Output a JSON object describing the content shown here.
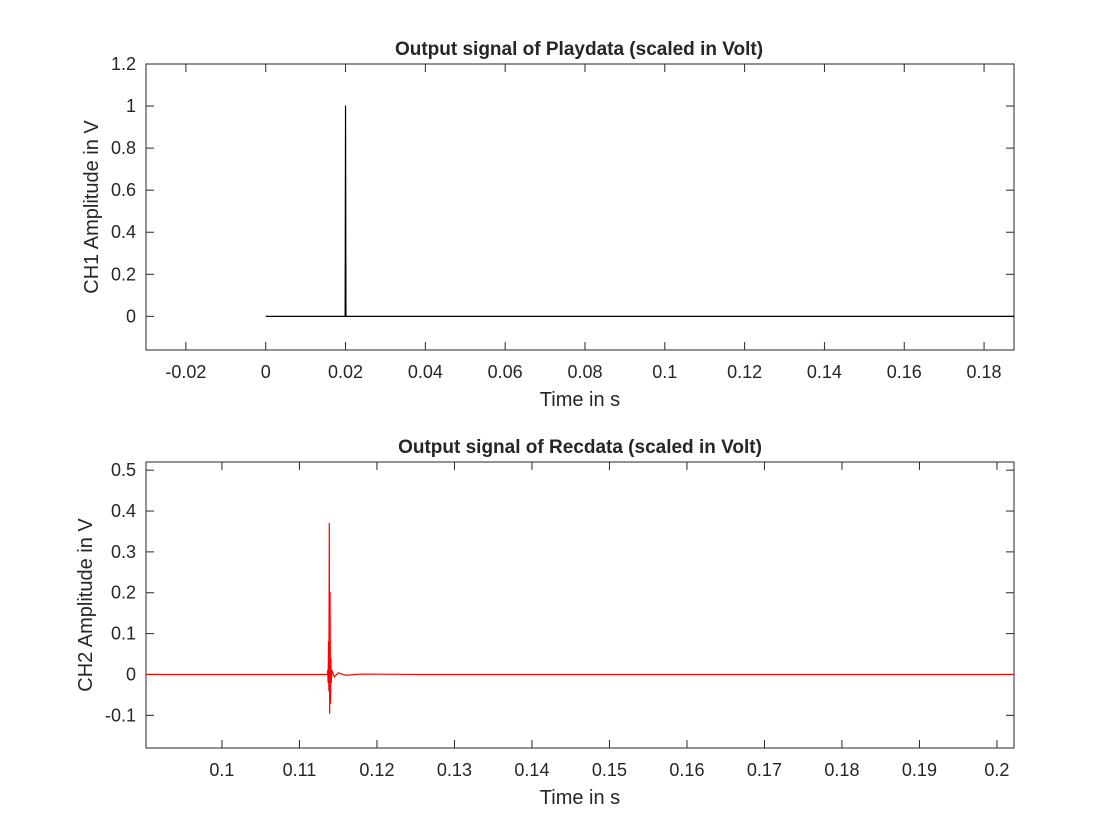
{
  "chart_data": [
    {
      "type": "line",
      "title": "Output signal of Playdata (scaled in Volt)",
      "xlabel": "Time in s",
      "ylabel": "CH1 Amplitude in V",
      "xlim": [
        -0.03,
        0.1875
      ],
      "ylim": [
        -0.16,
        1.2
      ],
      "xticks": [
        -0.02,
        0,
        0.02,
        0.04,
        0.06,
        0.08,
        0.1,
        0.12,
        0.14,
        0.16,
        0.18
      ],
      "xtick_labels": [
        "-0.02",
        "0",
        "0.02",
        "0.04",
        "0.06",
        "0.08",
        "0.1",
        "0.12",
        "0.14",
        "0.16",
        "0.18"
      ],
      "yticks": [
        0,
        0.2,
        0.4,
        0.6,
        0.8,
        1,
        1.2
      ],
      "ytick_labels": [
        "0",
        "0.2",
        "0.4",
        "0.6",
        "0.8",
        "1",
        "1.2"
      ],
      "grid": false,
      "series": [
        {
          "color": "#000000",
          "x": [
            0,
            0.0199,
            0.02,
            0.0201,
            0.1875
          ],
          "y": [
            0,
            0,
            1,
            0,
            0
          ]
        }
      ]
    },
    {
      "type": "line",
      "title": "Output signal of Recdata (scaled in Volt)",
      "xlabel": "Time in s",
      "ylabel": "CH2 Amplitude in V",
      "xlim": [
        0.0902,
        0.2022
      ],
      "ylim": [
        -0.18,
        0.52
      ],
      "xticks": [
        0.1,
        0.11,
        0.12,
        0.13,
        0.14,
        0.15,
        0.16,
        0.17,
        0.18,
        0.19,
        0.2
      ],
      "xtick_labels": [
        "0.1",
        "0.11",
        "0.12",
        "0.13",
        "0.14",
        "0.15",
        "0.16",
        "0.17",
        "0.18",
        "0.19",
        "0.2"
      ],
      "yticks": [
        -0.1,
        0,
        0.1,
        0.2,
        0.3,
        0.4,
        0.5
      ],
      "ytick_labels": [
        "-0.1",
        "0",
        "0.1",
        "0.2",
        "0.3",
        "0.4",
        "0.5"
      ],
      "grid": false,
      "series": [
        {
          "color": "#ff0000",
          "x": [
            0.0902,
            0.1136,
            0.11365,
            0.1137,
            0.11375,
            0.1138,
            0.11385,
            0.1139,
            0.11395,
            0.114,
            0.11405,
            0.1141,
            0.1142,
            0.1145,
            0.115,
            0.116,
            0.118,
            0.125,
            0.2022
          ],
          "y": [
            0,
            0,
            0.01,
            -0.02,
            0.08,
            -0.04,
            0.37,
            -0.095,
            0.2,
            -0.07,
            0.04,
            -0.02,
            0.01,
            -0.006,
            0.004,
            -0.002,
            0.001,
            0,
            0
          ]
        }
      ]
    }
  ]
}
